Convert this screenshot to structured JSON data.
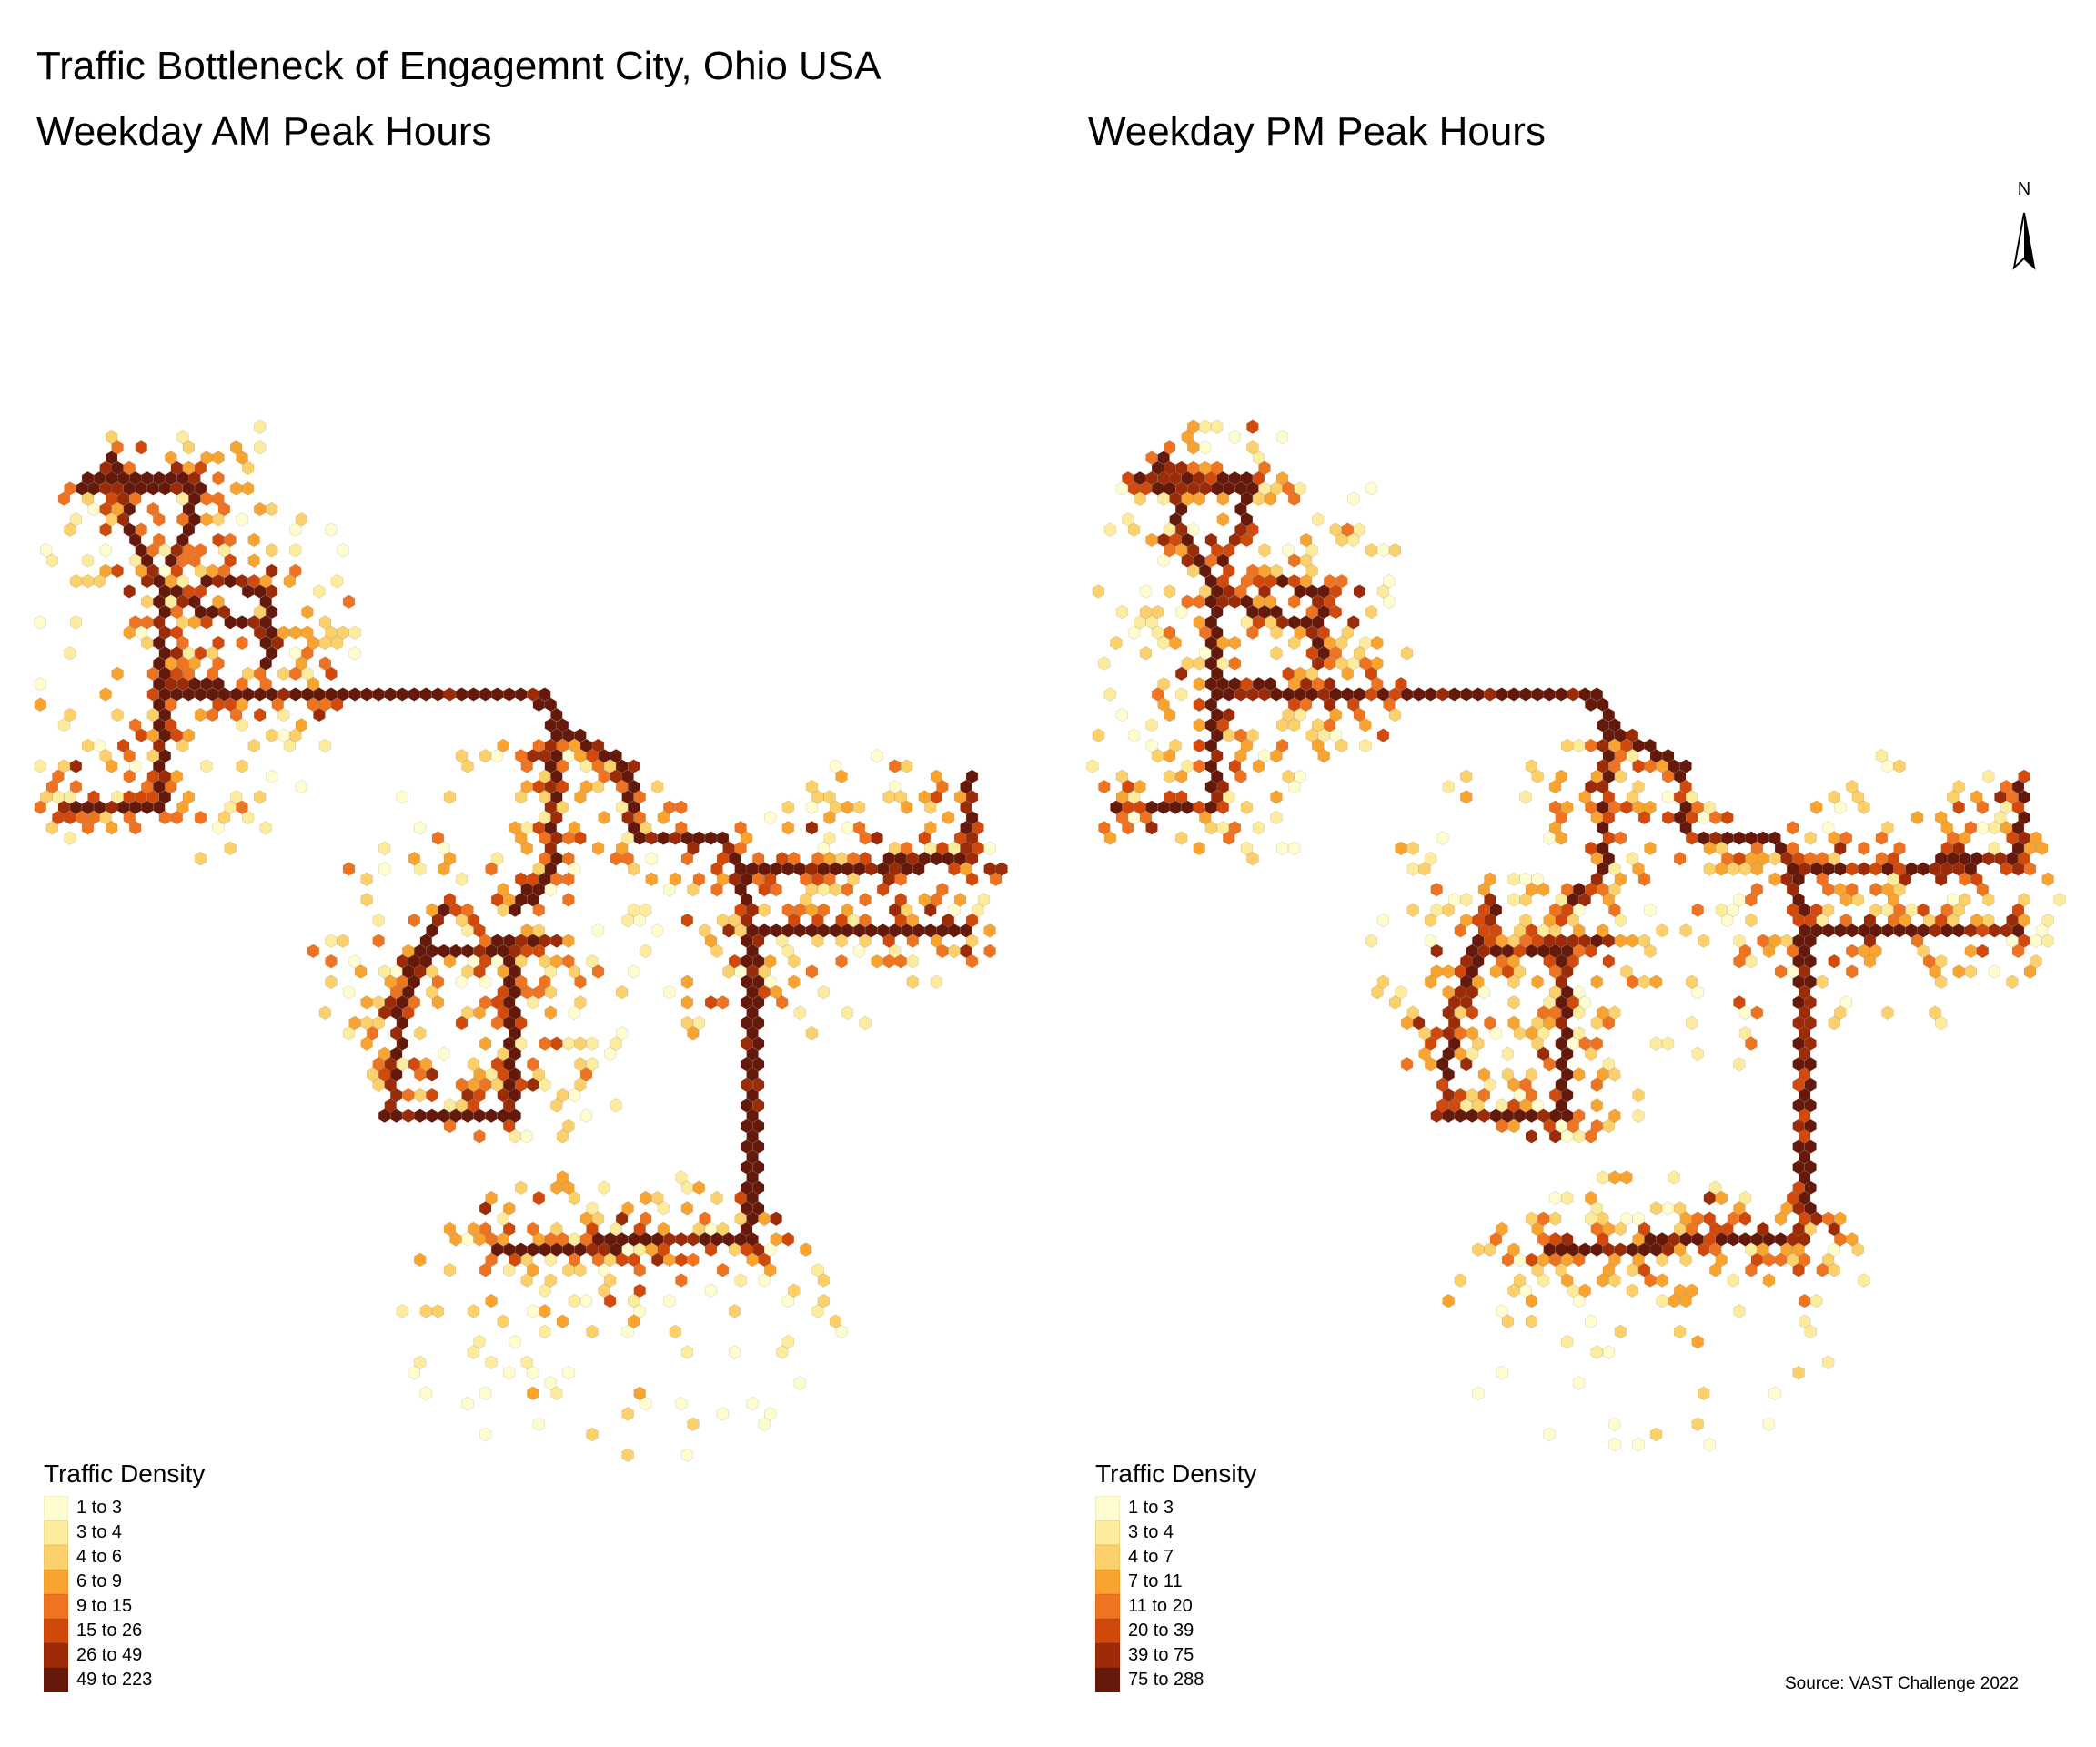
{
  "title": "Traffic Bottleneck of Engagemnt City, Ohio USA",
  "panels": [
    {
      "title": "Weekday AM Peak Hours",
      "legend": {
        "title": "Traffic Density",
        "classes": [
          "1 to 3",
          "3 to 4",
          "4 to 6",
          "6 to 9",
          "9 to 15",
          "15 to 26",
          "26 to 49",
          "49 to 223"
        ]
      }
    },
    {
      "title": "Weekday PM Peak Hours",
      "legend": {
        "title": "Traffic Density",
        "classes": [
          "1 to 3",
          "3 to 4",
          "4 to 7",
          "7 to 11",
          "11 to 20",
          "20 to 39",
          "39 to 75",
          "75 to 288"
        ]
      }
    }
  ],
  "palette": [
    "#fffdd0",
    "#fdeb9e",
    "#fcd06a",
    "#f9a431",
    "#ef7421",
    "#d14a0c",
    "#9c2b08",
    "#65190a"
  ],
  "north_arrow": {
    "label": "N"
  },
  "source": "Source: VAST Challenge 2022"
}
